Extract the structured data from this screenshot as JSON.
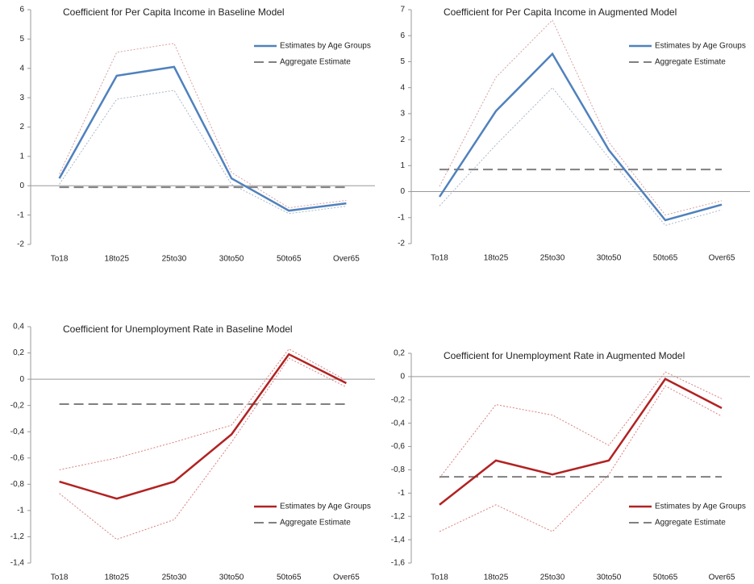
{
  "chart_data": [
    {
      "type": "line",
      "title": "Coefficient for Per Capita Income in Baseline Model",
      "categories": [
        "To18",
        "18to25",
        "25to30",
        "30to50",
        "50to65",
        "Over65"
      ],
      "ylim": [
        -2,
        6
      ],
      "yticks": [
        -2,
        -1,
        0,
        1,
        2,
        3,
        4,
        5,
        6
      ],
      "legend_position": "top-right",
      "series": [
        {
          "name": "Estimates by Age Groups",
          "color": "#4f81bd",
          "line_style": "solid",
          "values": [
            0.25,
            3.75,
            4.05,
            0.25,
            -0.85,
            -0.6
          ]
        },
        {
          "name": "Aggregate Estimate",
          "color": "#808080",
          "line_style": "dashed",
          "values": [
            -0.05,
            -0.05,
            -0.05,
            -0.05,
            -0.05,
            -0.05
          ]
        },
        {
          "color": "#d9a0a0",
          "line_style": "dotted",
          "values": [
            0.4,
            4.55,
            4.85,
            0.45,
            -0.75,
            -0.5
          ]
        },
        {
          "color": "#aab7c8",
          "line_style": "dotted",
          "values": [
            0.05,
            2.95,
            3.25,
            0.05,
            -0.95,
            -0.7
          ]
        }
      ]
    },
    {
      "type": "line",
      "title": "Coefficient for Per Capita Income in Augmented Model",
      "categories": [
        "To18",
        "18to25",
        "25to30",
        "30to50",
        "50to65",
        "Over65"
      ],
      "ylim": [
        -2,
        7
      ],
      "yticks": [
        -2,
        -1,
        0,
        1,
        2,
        3,
        4,
        5,
        6,
        7
      ],
      "legend_position": "top-right",
      "series": [
        {
          "name": "Estimates by Age Groups",
          "color": "#4f81bd",
          "line_style": "solid",
          "values": [
            -0.2,
            3.1,
            5.3,
            1.6,
            -1.1,
            -0.5
          ]
        },
        {
          "name": "Aggregate Estimate",
          "color": "#808080",
          "line_style": "dashed",
          "values": [
            0.85,
            0.85,
            0.85,
            0.85,
            0.85,
            0.85
          ]
        },
        {
          "color": "#d9a0a0",
          "line_style": "dotted",
          "values": [
            0.2,
            4.4,
            6.6,
            1.9,
            -0.9,
            -0.35
          ]
        },
        {
          "color": "#aab7c8",
          "line_style": "dotted",
          "values": [
            -0.55,
            1.8,
            4.0,
            1.3,
            -1.3,
            -0.7
          ]
        }
      ]
    },
    {
      "type": "line",
      "title": "Coefficient for Unemployment Rate in Baseline Model",
      "categories": [
        "To18",
        "18to25",
        "25to30",
        "30to50",
        "50to65",
        "Over65"
      ],
      "ylim": [
        -1.4,
        0.4
      ],
      "yticks": [
        {
          "value": -1.4,
          "label": "-1,4"
        },
        {
          "value": -1.2,
          "label": "-1,2"
        },
        -1,
        {
          "value": -0.8,
          "label": "-0,8"
        },
        {
          "value": -0.6,
          "label": "-0,6"
        },
        {
          "value": -0.4,
          "label": "-0,4"
        },
        {
          "value": -0.2,
          "label": "-0,2"
        },
        0,
        {
          "value": 0.2,
          "label": "0,2"
        },
        {
          "value": 0.4,
          "label": "0,4"
        }
      ],
      "legend_position": "bottom-right",
      "series": [
        {
          "name": "Estimates by Age Groups",
          "color": "#b22222",
          "line_style": "solid",
          "values": [
            -0.78,
            -0.91,
            -0.78,
            -0.42,
            0.19,
            -0.03
          ]
        },
        {
          "name": "Aggregate Estimate",
          "color": "#808080",
          "line_style": "dashed",
          "values": [
            -0.19,
            -0.19,
            -0.19,
            -0.19,
            -0.19,
            -0.19
          ]
        },
        {
          "color": "#d98080",
          "line_style": "dotted",
          "values": [
            -0.69,
            -0.6,
            -0.48,
            -0.35,
            0.23,
            -0.01
          ]
        },
        {
          "color": "#d98080",
          "line_style": "dotted",
          "values": [
            -0.87,
            -1.22,
            -1.07,
            -0.48,
            0.16,
            -0.06
          ]
        }
      ]
    },
    {
      "type": "line",
      "title": "Coefficient for Unemployment Rate in Augmented Model",
      "categories": [
        "To18",
        "18to25",
        "25to30",
        "30to50",
        "50to65",
        "Over65"
      ],
      "ylim": [
        -1.6,
        0.2
      ],
      "yticks": [
        {
          "value": -1.6,
          "label": "-1,6"
        },
        {
          "value": -1.4,
          "label": "-1,4"
        },
        {
          "value": -1.2,
          "label": "-1,2"
        },
        -1,
        {
          "value": -0.8,
          "label": "-0,8"
        },
        {
          "value": -0.6,
          "label": "-0,6"
        },
        {
          "value": -0.4,
          "label": "-0,4"
        },
        {
          "value": -0.2,
          "label": "-0,2"
        },
        0,
        {
          "value": 0.2,
          "label": "0,2"
        }
      ],
      "legend_position": "bottom-right",
      "series": [
        {
          "name": "Estimates by Age Groups",
          "color": "#b22222",
          "line_style": "solid",
          "values": [
            -1.1,
            -0.72,
            -0.84,
            -0.72,
            -0.02,
            -0.27
          ]
        },
        {
          "name": "Aggregate Estimate",
          "color": "#808080",
          "line_style": "dashed",
          "values": [
            -0.86,
            -0.86,
            -0.86,
            -0.86,
            -0.86,
            -0.86
          ]
        },
        {
          "color": "#d98080",
          "line_style": "dotted",
          "values": [
            -0.87,
            -0.24,
            -0.33,
            -0.59,
            0.04,
            -0.19
          ]
        },
        {
          "color": "#d98080",
          "line_style": "dotted",
          "values": [
            -1.33,
            -1.1,
            -1.33,
            -0.84,
            -0.08,
            -0.34
          ]
        }
      ]
    }
  ]
}
